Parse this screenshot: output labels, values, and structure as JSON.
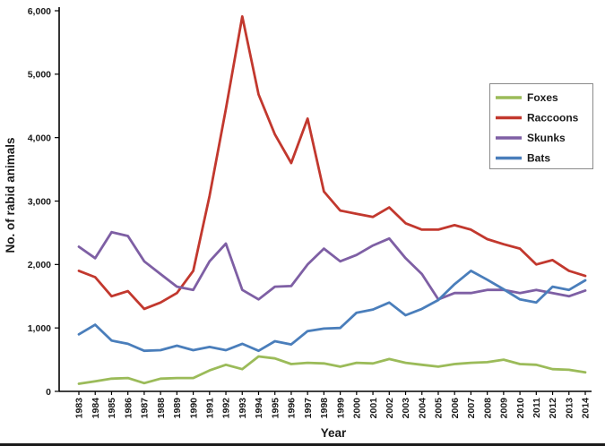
{
  "figure": {
    "kind": "scientific line chart",
    "bottom_rule_color": "#1a1a1a"
  },
  "chart_data": {
    "type": "line",
    "title": "",
    "xlabel": "Year",
    "ylabel": "No. of rabid animals",
    "ylim": [
      0,
      6000
    ],
    "ytick_interval": 1000,
    "ytick_labels": [
      "0",
      "1,000",
      "2,000",
      "3,000",
      "4,000",
      "5,000",
      "6,000"
    ],
    "grid": false,
    "legend_position": "right",
    "axis_color": "#000000",
    "categories": [
      "1983",
      "1984",
      "1985",
      "1986",
      "1987",
      "1988",
      "1989",
      "1990",
      "1991",
      "1992",
      "1993",
      "1994",
      "1995",
      "1996",
      "1997",
      "1998",
      "1999",
      "2000",
      "2001",
      "2002",
      "2003",
      "2004",
      "2005",
      "2006",
      "2007",
      "2008",
      "2009",
      "2010",
      "2011",
      "2012",
      "2013",
      "2014"
    ],
    "series": [
      {
        "name": "Foxes",
        "color": "#9bbb59",
        "values": [
          120,
          160,
          200,
          210,
          130,
          200,
          210,
          210,
          330,
          420,
          350,
          550,
          520,
          430,
          450,
          440,
          390,
          450,
          440,
          510,
          450,
          420,
          390,
          430,
          450,
          460,
          500,
          430,
          420,
          350,
          340,
          300
        ]
      },
      {
        "name": "Raccoons",
        "color": "#c2382e",
        "values": [
          1900,
          1800,
          1500,
          1580,
          1300,
          1400,
          1550,
          1900,
          3080,
          4450,
          5910,
          4680,
          4050,
          3600,
          4300,
          3150,
          2850,
          2800,
          2750,
          2900,
          2650,
          2550,
          2550,
          2620,
          2550,
          2400,
          2320,
          2250,
          2000,
          2070,
          1900,
          1820
        ]
      },
      {
        "name": "Skunks",
        "color": "#7e5fa4",
        "values": [
          2280,
          2100,
          2510,
          2450,
          2050,
          1850,
          1650,
          1600,
          2050,
          2330,
          1600,
          1450,
          1650,
          1660,
          2000,
          2250,
          2050,
          2150,
          2300,
          2410,
          2100,
          1850,
          1450,
          1550,
          1550,
          1600,
          1600,
          1550,
          1600,
          1550,
          1500,
          1590
        ]
      },
      {
        "name": "Bats",
        "color": "#4a7ebb",
        "values": [
          900,
          1050,
          800,
          750,
          640,
          650,
          720,
          650,
          700,
          650,
          750,
          640,
          790,
          740,
          950,
          990,
          1000,
          1240,
          1290,
          1400,
          1200,
          1300,
          1440,
          1690,
          1900,
          1760,
          1610,
          1450,
          1400,
          1650,
          1600,
          1750
        ]
      }
    ]
  }
}
